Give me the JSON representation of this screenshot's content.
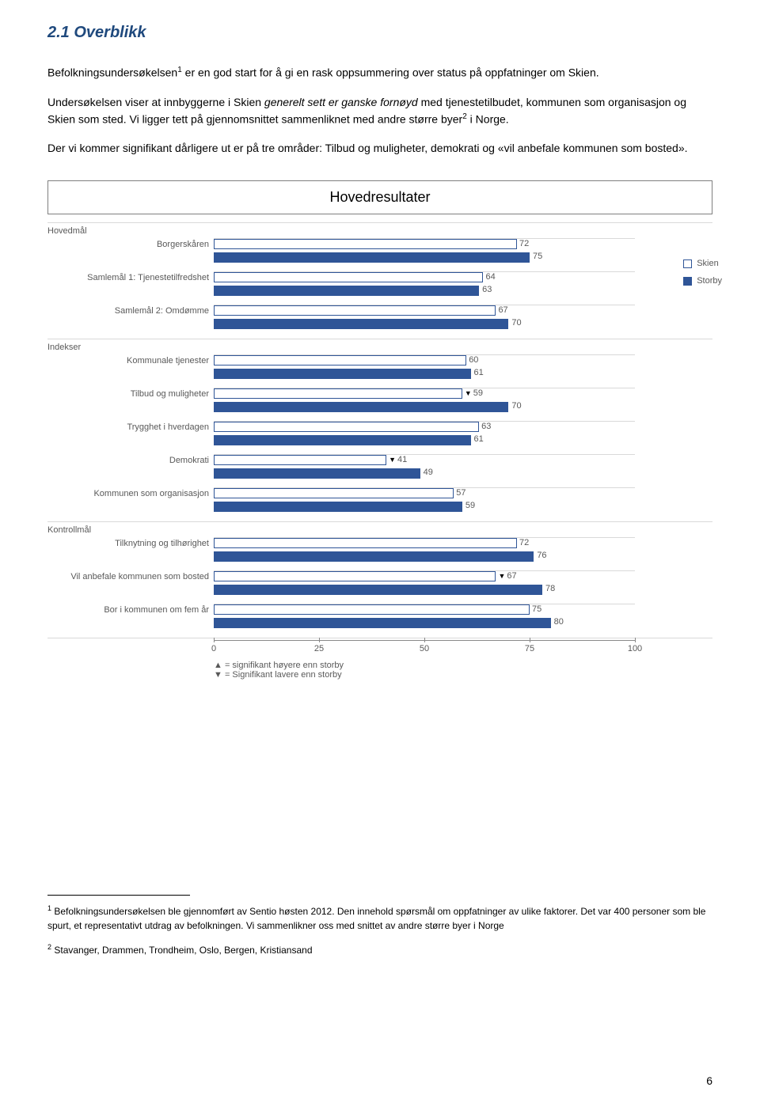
{
  "heading": "2.1 Overblikk",
  "para1_a": "Befolkningsundersøkelsen",
  "para1_sup": "1",
  "para1_b": " er en god start for å gi en rask oppsummering over status på oppfatninger om Skien.",
  "para2_a": "Undersøkelsen viser at innbyggerne i Skien ",
  "para2_em": "generelt sett er ganske fornøyd",
  "para2_b": " med tjenestetilbudet, kommunen som organisasjon og Skien som sted. Vi ligger tett på gjennomsnittet sammenliknet med andre større byer",
  "para2_sup": "2",
  "para2_c": " i Norge.",
  "para3": "Der vi kommer signifikant dårligere ut er på tre områder: Tilbud og muligheter, demokrati og «vil anbefale kommunen som bosted».",
  "chart": {
    "title": "Hovedresultater",
    "legend": {
      "skien": "Skien",
      "storby": "Storby"
    },
    "x_ticks": [
      0,
      25,
      50,
      75,
      100
    ],
    "sections": [
      {
        "label": "Hovedmål",
        "rows": [
          {
            "label": "Borgerskåren",
            "skien": 72,
            "storby": 75,
            "marker": ""
          },
          {
            "label": "Samlemål 1: Tjenestetilfredshet",
            "skien": 64,
            "storby": 63,
            "marker": ""
          },
          {
            "label": "Samlemål 2: Omdømme",
            "skien": 67,
            "storby": 70,
            "marker": ""
          }
        ]
      },
      {
        "label": "Indekser",
        "rows": [
          {
            "label": "Kommunale tjenester",
            "skien": 60,
            "storby": 61,
            "marker": ""
          },
          {
            "label": "Tilbud og muligheter",
            "skien": 59,
            "storby": 70,
            "marker": "down"
          },
          {
            "label": "Trygghet i hverdagen",
            "skien": 63,
            "storby": 61,
            "marker": ""
          },
          {
            "label": "Demokrati",
            "skien": 41,
            "storby": 49,
            "marker": "down"
          },
          {
            "label": "Kommunen som organisasjon",
            "skien": 57,
            "storby": 59,
            "marker": ""
          }
        ]
      },
      {
        "label": "Kontrollmål",
        "rows": [
          {
            "label": "Tilknytning og tilhørighet",
            "skien": 72,
            "storby": 76,
            "marker": ""
          },
          {
            "label": "Vil anbefale kommunen som bosted",
            "skien": 67,
            "storby": 78,
            "marker": "down"
          },
          {
            "label": "Bor i kommunen om fem år",
            "skien": 75,
            "storby": 80,
            "marker": ""
          }
        ]
      }
    ],
    "footnote_up": "▲ = signifikant høyere enn storby",
    "footnote_down": "▼ = Signifikant lavere enn storby",
    "colors": {
      "skien_border": "#2f5597",
      "storby_fill": "#2f5597",
      "grid": "#d9d9d9"
    }
  },
  "footnotes": {
    "f1_sup": "1",
    "f1": " Befolkningsundersøkelsen ble gjennomført av Sentio høsten 2012. Den innehold spørsmål om oppfatninger av ulike faktorer. Det var 400 personer som ble spurt, et representativt utdrag av befolkningen. Vi sammenlikner oss med snittet av andre større byer i Norge",
    "f2_sup": "2",
    "f2": " Stavanger, Drammen, Trondheim, Oslo, Bergen, Kristiansand"
  },
  "page_number": "6"
}
